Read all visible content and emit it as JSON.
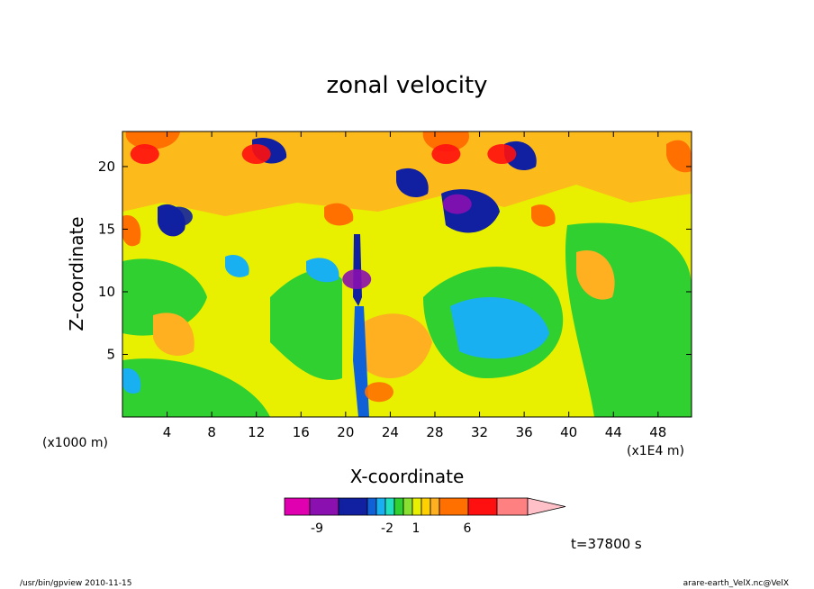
{
  "chart_data": {
    "type": "heatmap",
    "title": "zonal velocity",
    "xlabel": "X-coordinate",
    "ylabel": "Z-coordinate",
    "x_unit": "(x1E4 m)",
    "y_unit": "(x1000 m)",
    "x_ticks": [
      4,
      8,
      12,
      16,
      20,
      24,
      28,
      32,
      36,
      40,
      44,
      48
    ],
    "y_ticks": [
      5,
      10,
      15,
      20
    ],
    "xlim": [
      0,
      51
    ],
    "ylim": [
      0,
      22.8
    ],
    "time_label": "t=37800 s",
    "colorbar": {
      "levels": [
        -14,
        -9,
        -6,
        -2,
        -1.5,
        -1,
        -0.5,
        0,
        0.5,
        1,
        1.5,
        2,
        6,
        9,
        12,
        15
      ],
      "tick_labels": [
        "-9",
        "-2",
        "1",
        "6"
      ],
      "colors": [
        "#e000b0",
        "#8a10b0",
        "#1020a0",
        "#1060d8",
        "#18b0f0",
        "#20e0c0",
        "#30d030",
        "#8ae030",
        "#e8f000",
        "#ffd000",
        "#ffb020",
        "#ff7000",
        "#ff1010",
        "#ff8080",
        "#ffc0c8"
      ]
    },
    "field_features": [
      {
        "x": 21,
        "z": 11,
        "u": -9
      },
      {
        "x": 30,
        "z": 17,
        "u": -8
      },
      {
        "x": 5,
        "z": 16,
        "u": -6
      },
      {
        "x": 34,
        "z": 21,
        "u": 8
      },
      {
        "x": 29,
        "z": 21,
        "u": 7
      },
      {
        "x": 2,
        "z": 21,
        "u": 7
      },
      {
        "x": 12,
        "z": 21,
        "u": 6
      },
      {
        "x": 36,
        "z": 6,
        "u": -1.5
      },
      {
        "x": 23,
        "z": 2,
        "u": 5
      }
    ]
  },
  "footer": {
    "left": "/usr/bin/gpview  2010-11-15",
    "right": "arare-earth_VelX.nc@VelX"
  }
}
